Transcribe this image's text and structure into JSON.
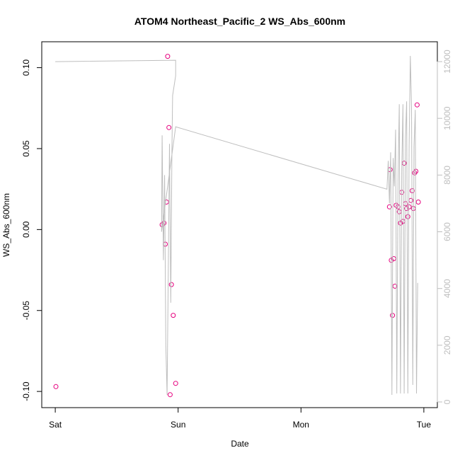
{
  "chart_data": {
    "type": "scatter",
    "title": "ATOM4 Northeast_Pacific_2 WS_Abs_600nm",
    "xlabel": "Date",
    "ylabel": "WS_Abs_600nm",
    "x_axis": {
      "unit": "days since Sat 00:00",
      "range": [
        -0.11,
        3.11
      ],
      "ticks": [
        {
          "value": 0,
          "label": "Sat"
        },
        {
          "value": 1,
          "label": "Sun"
        },
        {
          "value": 2,
          "label": "Mon"
        },
        {
          "value": 3,
          "label": "Tue"
        }
      ]
    },
    "y_axis": {
      "range": [
        -0.11,
        0.116
      ],
      "ticks": [
        {
          "value": -0.1,
          "label": "-0.10"
        },
        {
          "value": -0.05,
          "label": "-0.05"
        },
        {
          "value": 0.0,
          "label": "0.00"
        },
        {
          "value": 0.05,
          "label": "0.05"
        },
        {
          "value": 0.1,
          "label": "0.10"
        }
      ]
    },
    "y2_axis": {
      "range": [
        -200,
        12700
      ],
      "color": "#bebebe",
      "ticks": [
        {
          "value": 0,
          "label": "0"
        },
        {
          "value": 2000,
          "label": "2000"
        },
        {
          "value": 4000,
          "label": "4000"
        },
        {
          "value": 6000,
          "label": "6000"
        },
        {
          "value": 8000,
          "label": "8000"
        },
        {
          "value": 10000,
          "label": "10000"
        },
        {
          "value": 12000,
          "label": "12000"
        }
      ]
    },
    "series": [
      {
        "type": "scatter",
        "axis": "left",
        "color": "#e6007e",
        "points": [
          {
            "x": 0.005,
            "y": -0.097
          },
          {
            "x": 0.87,
            "y": 0.003
          },
          {
            "x": 0.885,
            "y": 0.004
          },
          {
            "x": 0.895,
            "y": -0.009
          },
          {
            "x": 0.905,
            "y": 0.017
          },
          {
            "x": 0.915,
            "y": 0.107
          },
          {
            "x": 0.925,
            "y": 0.063
          },
          {
            "x": 0.935,
            "y": -0.102
          },
          {
            "x": 0.945,
            "y": -0.034
          },
          {
            "x": 0.96,
            "y": -0.053
          },
          {
            "x": 0.98,
            "y": -0.095
          },
          {
            "x": 2.72,
            "y": 0.014
          },
          {
            "x": 2.725,
            "y": 0.037
          },
          {
            "x": 2.735,
            "y": -0.019
          },
          {
            "x": 2.745,
            "y": -0.053
          },
          {
            "x": 2.755,
            "y": -0.018
          },
          {
            "x": 2.765,
            "y": -0.035
          },
          {
            "x": 2.775,
            "y": 0.015
          },
          {
            "x": 2.79,
            "y": 0.014
          },
          {
            "x": 2.8,
            "y": 0.011
          },
          {
            "x": 2.81,
            "y": 0.004
          },
          {
            "x": 2.82,
            "y": 0.023
          },
          {
            "x": 2.83,
            "y": 0.005
          },
          {
            "x": 2.84,
            "y": 0.041
          },
          {
            "x": 2.85,
            "y": 0.016
          },
          {
            "x": 2.86,
            "y": 0.013
          },
          {
            "x": 2.87,
            "y": 0.008
          },
          {
            "x": 2.88,
            "y": 0.014
          },
          {
            "x": 2.895,
            "y": 0.018
          },
          {
            "x": 2.905,
            "y": 0.024
          },
          {
            "x": 2.915,
            "y": 0.013
          },
          {
            "x": 2.925,
            "y": 0.035
          },
          {
            "x": 2.935,
            "y": 0.036
          },
          {
            "x": 2.945,
            "y": 0.077
          },
          {
            "x": 2.955,
            "y": 0.017
          }
        ]
      },
      {
        "type": "line",
        "axis": "right",
        "color": "#bebebe",
        "points": [
          {
            "x": 0.0,
            "y": 12000
          },
          {
            "x": 0.98,
            "y": 12050
          },
          {
            "x": 0.98,
            "y": 11500
          },
          {
            "x": 0.955,
            "y": 10800
          },
          {
            "x": 0.95,
            "y": 9000
          },
          {
            "x": 0.94,
            "y": 3500
          },
          {
            "x": 0.93,
            "y": 9100
          },
          {
            "x": 0.91,
            "y": 250
          },
          {
            "x": 0.9,
            "y": 2000
          },
          {
            "x": 0.89,
            "y": 8000
          },
          {
            "x": 0.88,
            "y": 5000
          },
          {
            "x": 0.87,
            "y": 9400
          },
          {
            "x": 0.865,
            "y": 6000
          },
          {
            "x": 0.98,
            "y": 9700
          },
          {
            "x": 2.7,
            "y": 7500
          },
          {
            "x": 2.71,
            "y": 8500
          },
          {
            "x": 2.72,
            "y": 7000
          },
          {
            "x": 2.73,
            "y": 8800
          },
          {
            "x": 2.74,
            "y": 250
          },
          {
            "x": 2.75,
            "y": 8600
          },
          {
            "x": 2.76,
            "y": 7600
          },
          {
            "x": 2.77,
            "y": 9600
          },
          {
            "x": 2.78,
            "y": 300
          },
          {
            "x": 2.79,
            "y": 7800
          },
          {
            "x": 2.8,
            "y": 10500
          },
          {
            "x": 2.81,
            "y": 300
          },
          {
            "x": 2.82,
            "y": 8200
          },
          {
            "x": 2.83,
            "y": 10500
          },
          {
            "x": 2.84,
            "y": 300
          },
          {
            "x": 2.85,
            "y": 9300
          },
          {
            "x": 2.86,
            "y": 10600
          },
          {
            "x": 2.87,
            "y": 300
          },
          {
            "x": 2.88,
            "y": 9000
          },
          {
            "x": 2.89,
            "y": 12200
          },
          {
            "x": 2.9,
            "y": 10400
          },
          {
            "x": 2.91,
            "y": 600
          },
          {
            "x": 2.92,
            "y": 9000
          },
          {
            "x": 2.93,
            "y": 10300
          },
          {
            "x": 2.94,
            "y": 300
          },
          {
            "x": 2.95,
            "y": 4200
          }
        ]
      }
    ]
  }
}
